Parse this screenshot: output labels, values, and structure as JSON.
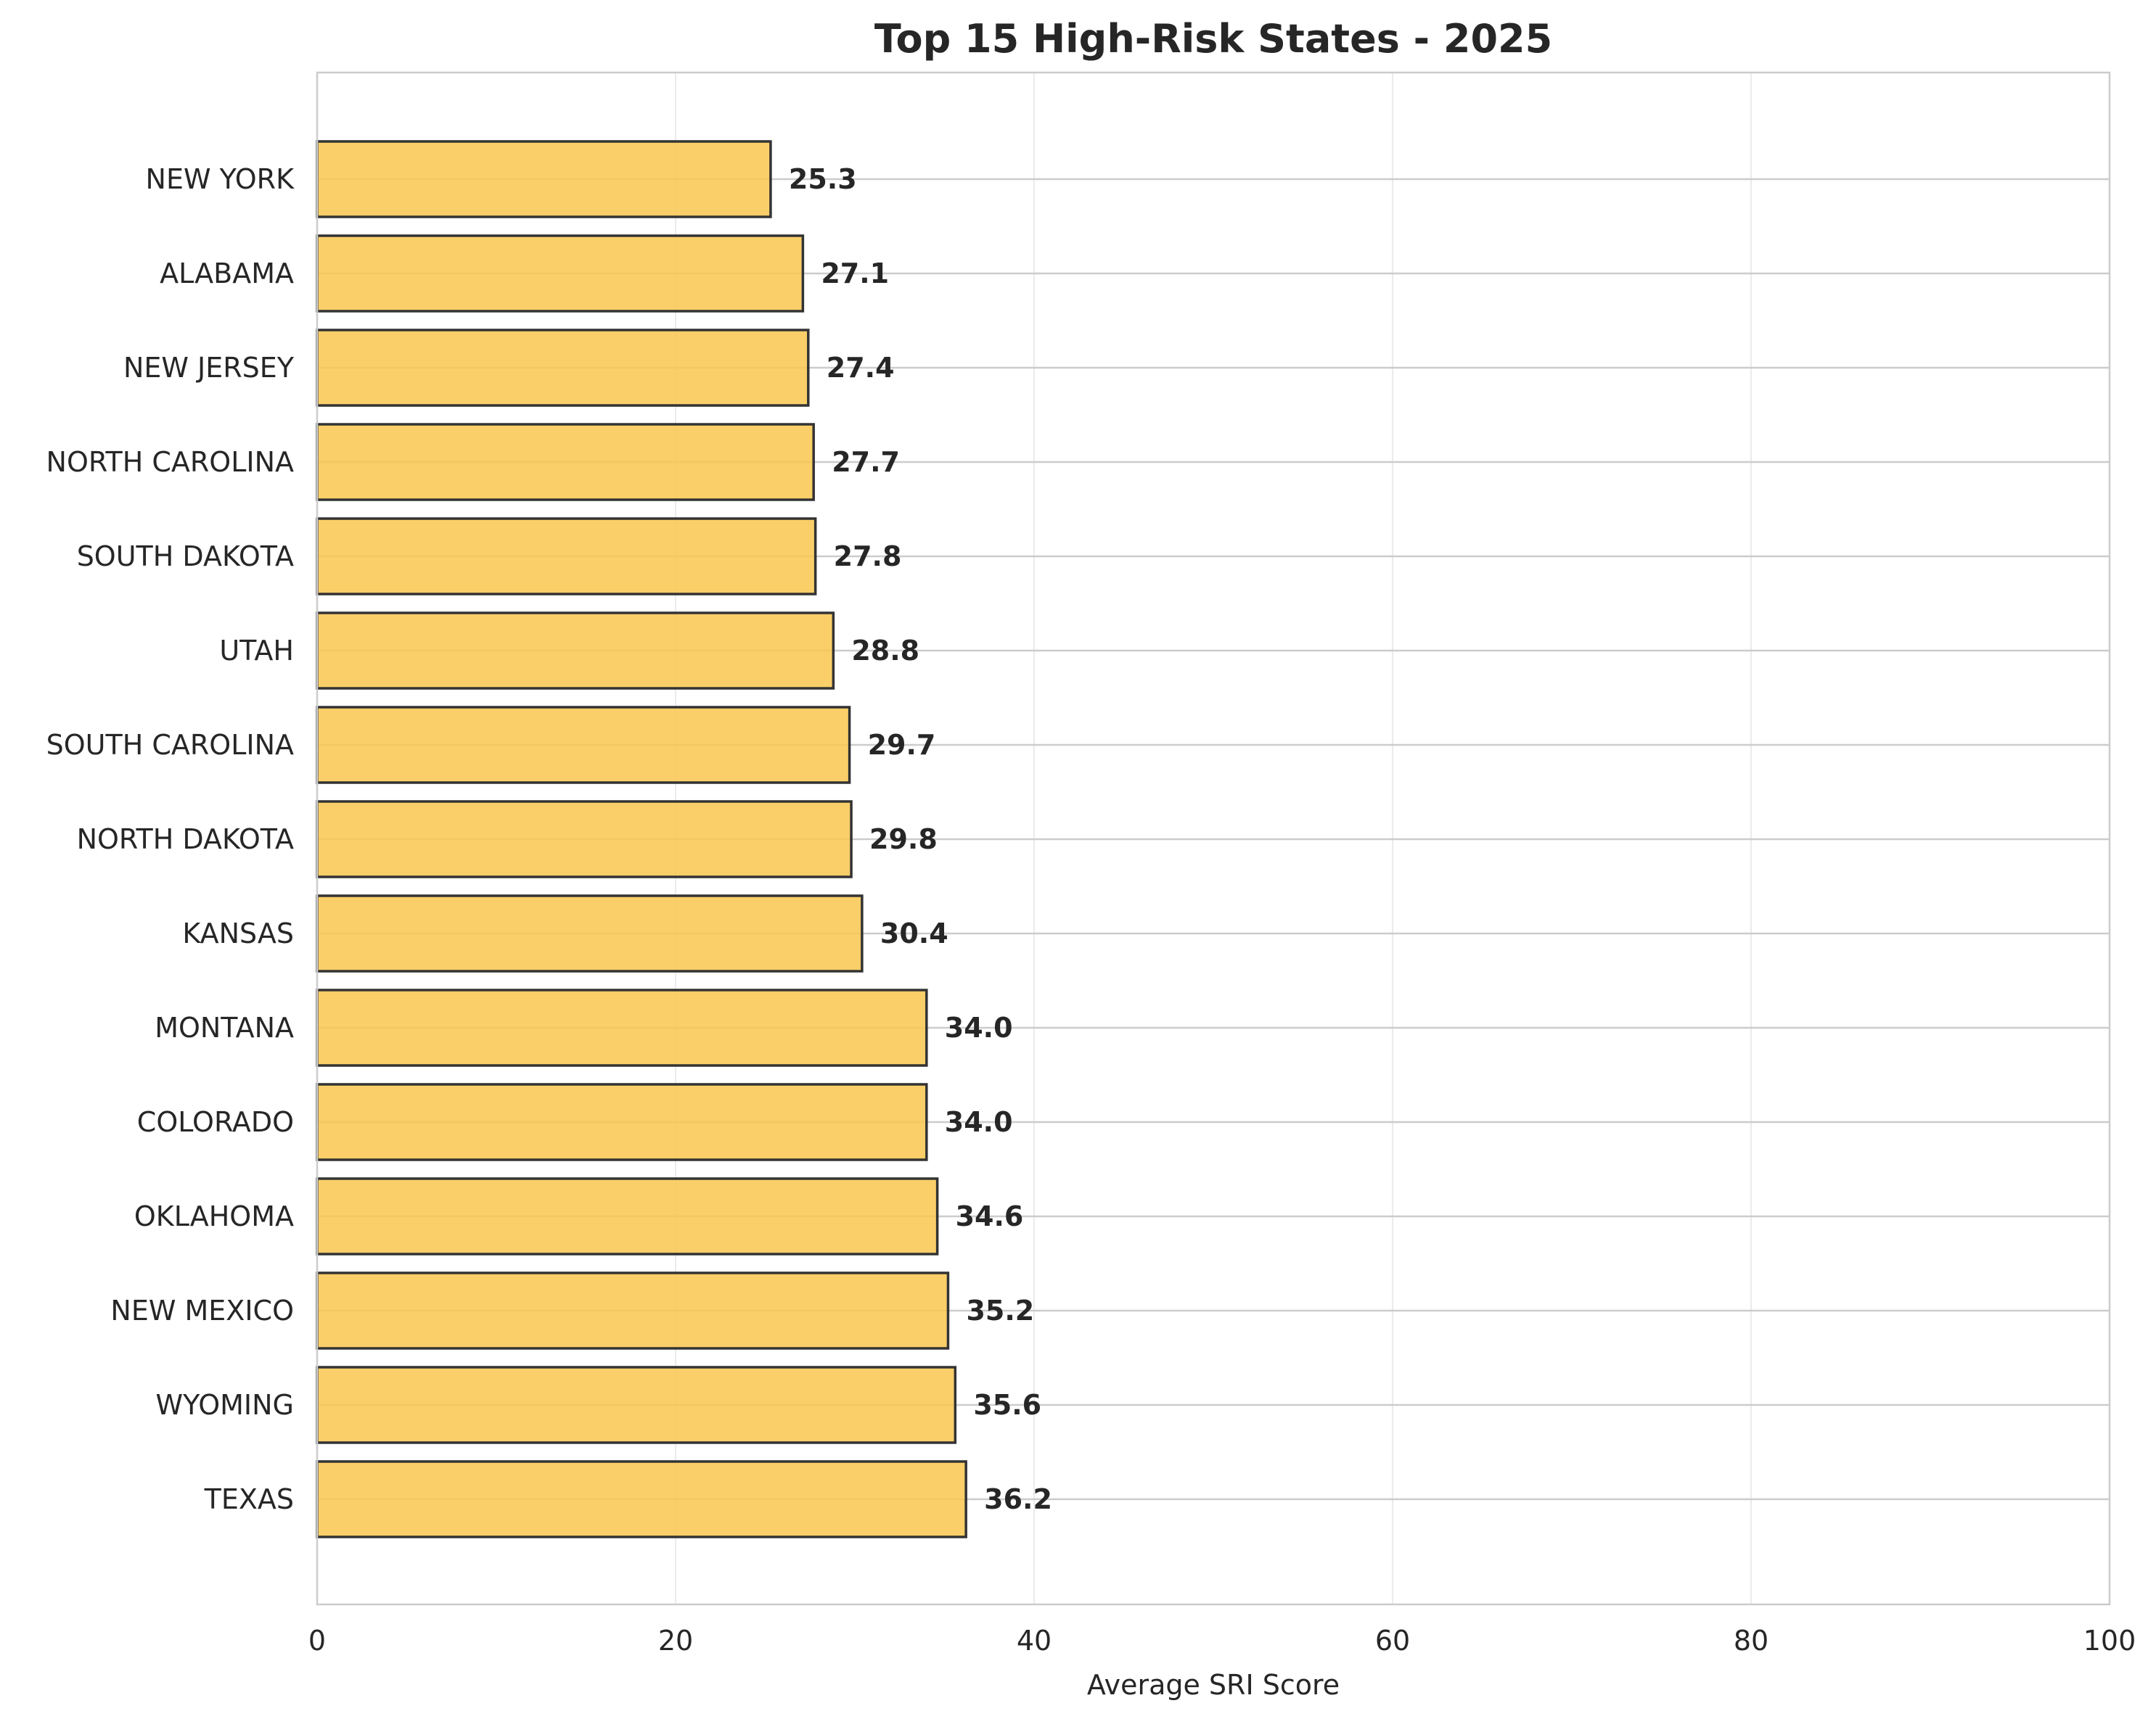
{
  "chart_data": {
    "type": "bar",
    "orientation": "horizontal",
    "title": "Top 15 High-Risk States - 2025",
    "xlabel": "Average SRI Score",
    "ylabel": "",
    "xlim": [
      0,
      100
    ],
    "x_ticks": [
      0,
      20,
      40,
      60,
      80,
      100
    ],
    "grid": true,
    "bar_color": "#F9C74F",
    "bar_edge_color": "#333333",
    "categories": [
      "NEW YORK",
      "ALABAMA",
      "NEW JERSEY",
      "NORTH CAROLINA",
      "SOUTH DAKOTA",
      "UTAH",
      "SOUTH CAROLINA",
      "NORTH DAKOTA",
      "KANSAS",
      "MONTANA",
      "COLORADO",
      "OKLAHOMA",
      "NEW MEXICO",
      "WYOMING",
      "TEXAS"
    ],
    "values": [
      25.3,
      27.1,
      27.4,
      27.7,
      27.8,
      28.8,
      29.7,
      29.8,
      30.4,
      34.0,
      34.0,
      34.6,
      35.2,
      35.6,
      36.2
    ],
    "value_labels": [
      "25.3",
      "27.1",
      "27.4",
      "27.7",
      "27.8",
      "28.8",
      "29.7",
      "29.8",
      "30.4",
      "34.0",
      "34.0",
      "34.6",
      "35.2",
      "35.6",
      "36.2"
    ]
  }
}
